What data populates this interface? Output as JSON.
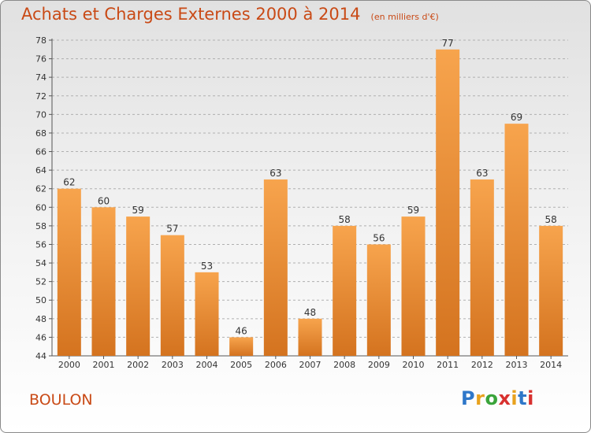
{
  "header": {
    "title": "Achats et Charges Externes 2000 à 2014",
    "subtitle": "(en milliers d'€)"
  },
  "footer": {
    "location": "BOULON",
    "logo": "Proxiti",
    "logo_colors": [
      "#2e77c9",
      "#e8a21e",
      "#3aa43a",
      "#d8312f",
      "#e8a21e",
      "#2e77c9",
      "#d8312f"
    ]
  },
  "colors": {
    "bar_light": "#f7a44d",
    "bar_dark": "#d4731f",
    "title": "#c94a16",
    "axis": "#555555",
    "grid": "#b0b0b0"
  },
  "chart_data": {
    "type": "bar",
    "title": "Achats et Charges Externes 2000 à 2014",
    "subtitle": "(en milliers d'€)",
    "categories": [
      "2000",
      "2001",
      "2002",
      "2003",
      "2004",
      "2005",
      "2006",
      "2007",
      "2008",
      "2009",
      "2010",
      "2011",
      "2012",
      "2013",
      "2014"
    ],
    "values": [
      62,
      60,
      59,
      57,
      53,
      46,
      63,
      48,
      58,
      56,
      59,
      77,
      63,
      69,
      58
    ],
    "ylim": [
      44,
      78
    ],
    "yticks": [
      44,
      46,
      48,
      50,
      52,
      54,
      56,
      58,
      60,
      62,
      64,
      66,
      68,
      70,
      72,
      74,
      76,
      78
    ],
    "grid": true,
    "xlabel": "",
    "ylabel": ""
  }
}
